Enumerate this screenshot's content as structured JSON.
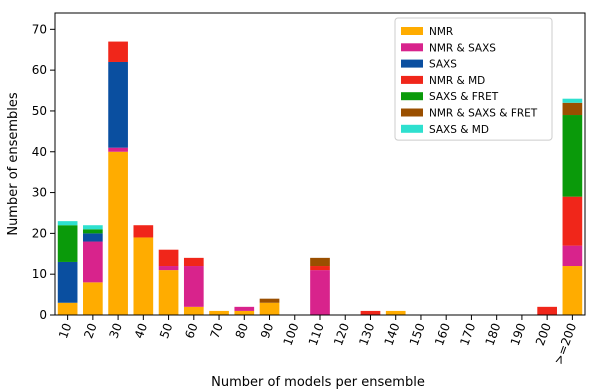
{
  "chart_data": {
    "type": "bar",
    "stacked": true,
    "xlabel": "Number of models per ensemble",
    "ylabel": "Number of ensembles",
    "ylim": [
      0,
      74
    ],
    "yticks": [
      0,
      10,
      20,
      30,
      40,
      50,
      60,
      70
    ],
    "categories": [
      "10",
      "20",
      "30",
      "40",
      "50",
      "60",
      "70",
      "80",
      "90",
      "100",
      "110",
      "120",
      "130",
      "140",
      "150",
      "160",
      "170",
      "180",
      "190",
      "200",
      ">=200"
    ],
    "grid": false,
    "legend_position": "top-right",
    "series": [
      {
        "name": "NMR",
        "color": "#FFAC00",
        "values": [
          3,
          8,
          40,
          19,
          11,
          2,
          1,
          1,
          3,
          0,
          0,
          0,
          0,
          1,
          0,
          0,
          0,
          0,
          0,
          0,
          12
        ]
      },
      {
        "name": "NMR & SAXS",
        "color": "#D8238C",
        "values": [
          0,
          10,
          1,
          0,
          1,
          10,
          0,
          1,
          0,
          0,
          11,
          0,
          0,
          0,
          0,
          0,
          0,
          0,
          0,
          0,
          5
        ]
      },
      {
        "name": "SAXS",
        "color": "#0A4FA0",
        "values": [
          10,
          2,
          21,
          0,
          0,
          0,
          0,
          0,
          0,
          0,
          0,
          0,
          0,
          0,
          0,
          0,
          0,
          0,
          0,
          0,
          0
        ]
      },
      {
        "name": "NMR & MD",
        "color": "#F0261A",
        "values": [
          0,
          0,
          5,
          3,
          4,
          2,
          0,
          0,
          0,
          0,
          1,
          0,
          1,
          0,
          0,
          0,
          0,
          0,
          0,
          2,
          12
        ]
      },
      {
        "name": "SAXS & FRET",
        "color": "#0A9A0A",
        "values": [
          9,
          1,
          0,
          0,
          0,
          0,
          0,
          0,
          0,
          0,
          0,
          0,
          0,
          0,
          0,
          0,
          0,
          0,
          0,
          0,
          20
        ]
      },
      {
        "name": "NMR & SAXS & FRET",
        "color": "#9A4F00",
        "values": [
          0,
          0,
          0,
          0,
          0,
          0,
          0,
          0,
          1,
          0,
          2,
          0,
          0,
          0,
          0,
          0,
          0,
          0,
          0,
          0,
          3
        ]
      },
      {
        "name": "SAXS & MD",
        "color": "#2EE0CF",
        "values": [
          1,
          1,
          0,
          0,
          0,
          0,
          0,
          0,
          0,
          0,
          0,
          0,
          0,
          0,
          0,
          0,
          0,
          0,
          0,
          0,
          1
        ]
      }
    ]
  }
}
